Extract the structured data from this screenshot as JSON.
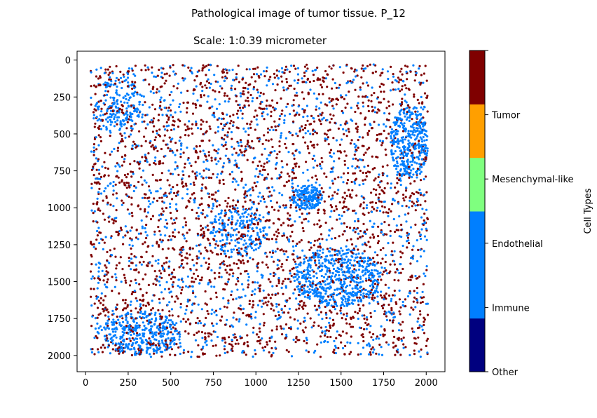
{
  "chart_data": {
    "type": "scatter",
    "suptitle": "Pathological image of tumor tissue. P_12",
    "title": "Scale: 1:0.39 micrometer",
    "xlabel": "",
    "ylabel": "",
    "xlim": [
      -50,
      2110
    ],
    "ylim": [
      2110,
      -60
    ],
    "y_inverted": true,
    "xticks": [
      0,
      250,
      500,
      750,
      1000,
      1250,
      1500,
      1750,
      2000
    ],
    "yticks": [
      0,
      250,
      500,
      750,
      1000,
      1250,
      1500,
      1750,
      2000
    ],
    "grid": false,
    "point_region": {
      "x": [
        30,
        2010
      ],
      "y": [
        30,
        2010
      ]
    },
    "approx_point_counts": {
      "Immune": 3000,
      "Tumor": 2600
    },
    "blue_density_regions": [
      {
        "category": "Immune",
        "cx": 1480,
        "cy": 1470,
        "rx": 260,
        "ry": 200,
        "weight": 3
      },
      {
        "category": "Immune",
        "cx": 1900,
        "cy": 560,
        "rx": 110,
        "ry": 260,
        "weight": 2
      },
      {
        "category": "Immune",
        "cx": 330,
        "cy": 1850,
        "rx": 230,
        "ry": 150,
        "weight": 2
      },
      {
        "category": "Immune",
        "cx": 1300,
        "cy": 930,
        "rx": 90,
        "ry": 80,
        "weight": 1
      },
      {
        "category": "Immune",
        "cx": 900,
        "cy": 1150,
        "rx": 170,
        "ry": 170,
        "weight": 1
      },
      {
        "category": "Immune",
        "cx": 200,
        "cy": 300,
        "rx": 150,
        "ry": 200,
        "weight": 1
      }
    ],
    "colorbar": {
      "label": "Cell Types",
      "categories": [
        "Other",
        "Immune",
        "Endothelial",
        "Mesenchymal-like",
        "Tumor",
        ""
      ],
      "colors": [
        "#00007f",
        "#007fff",
        "#007fff",
        "#7fff7f",
        "#ff9f00",
        "#7f0000"
      ]
    },
    "series": [
      {
        "name": "Immune",
        "color": "#007fff"
      },
      {
        "name": "Tumor",
        "color": "#7f0000"
      }
    ]
  }
}
